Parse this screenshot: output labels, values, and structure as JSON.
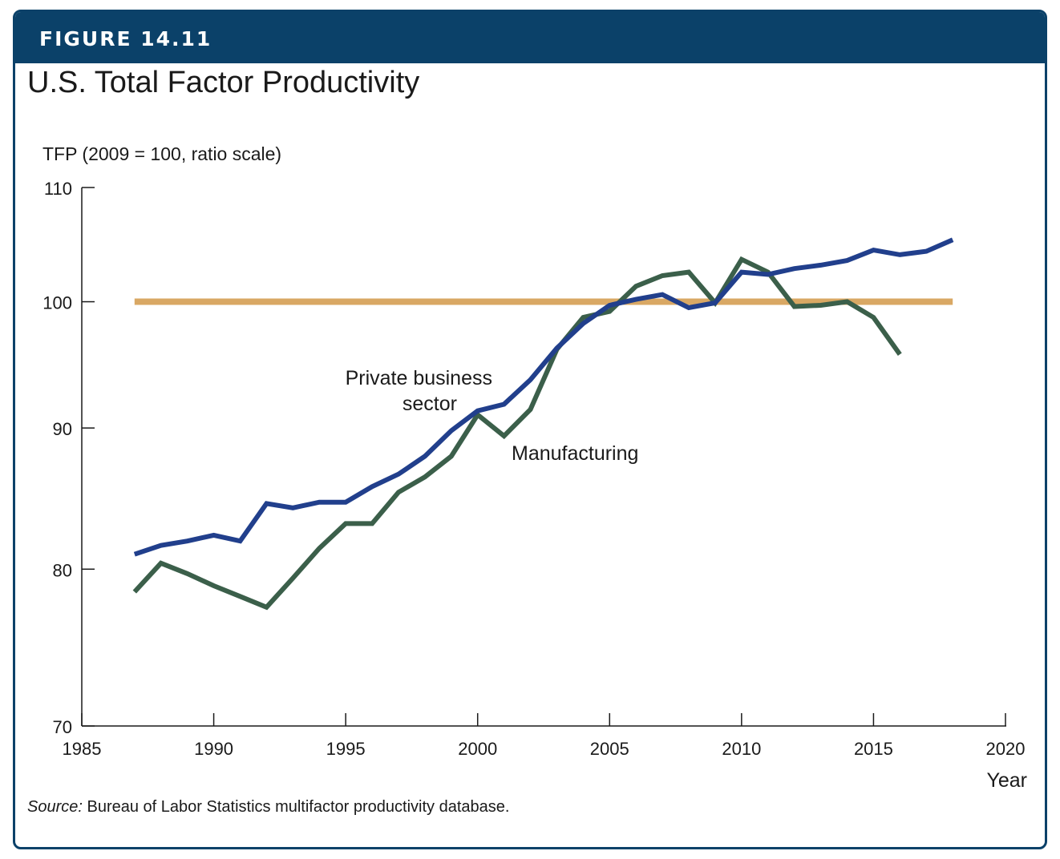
{
  "figure": {
    "label": "FIGURE 14.11",
    "title": "U.S. Total Factor Productivity",
    "source_prefix": "Source:",
    "source_text": " Bureau of Labor Statistics multifactor productivity database."
  },
  "colors": {
    "header": "#0b4169",
    "private": "#213f8c",
    "manufacturing": "#3b5f4a",
    "reference": "#d9a864"
  },
  "chart_data": {
    "type": "line",
    "title": "U.S. Total Factor Productivity",
    "ylabel": "TFP (2009 = 100, ratio scale)",
    "xlabel": "Year",
    "y_scale": "log",
    "xlim": [
      1985,
      2020
    ],
    "ylim": [
      70,
      110
    ],
    "x_ticks": [
      1985,
      1990,
      1995,
      2000,
      2005,
      2010,
      2015,
      2020
    ],
    "y_ticks": [
      70,
      80,
      90,
      100,
      110
    ],
    "grid": false,
    "series": [
      {
        "name": "Private business sector",
        "color_key": "private",
        "x": [
          1987,
          1988,
          1989,
          1990,
          1991,
          1992,
          1993,
          1994,
          1995,
          1996,
          1997,
          1998,
          1999,
          2000,
          2001,
          2002,
          2003,
          2004,
          2005,
          2006,
          2007,
          2008,
          2009,
          2010,
          2011,
          2012,
          2013,
          2014,
          2015,
          2016,
          2017,
          2018
        ],
        "values": [
          81.0,
          81.6,
          81.9,
          82.3,
          81.9,
          84.5,
          84.2,
          84.6,
          84.6,
          85.7,
          86.6,
          87.9,
          89.8,
          91.3,
          91.8,
          93.7,
          96.2,
          98.2,
          99.7,
          100.2,
          100.6,
          99.5,
          99.9,
          102.5,
          102.3,
          102.8,
          103.1,
          103.5,
          104.4,
          104.0,
          104.3,
          105.3
        ]
      },
      {
        "name": "Manufacturing",
        "color_key": "manufacturing",
        "x": [
          1987,
          1988,
          1989,
          1990,
          1991,
          1992,
          1993,
          1994,
          1995,
          1996,
          1997,
          1998,
          1999,
          2000,
          2001,
          2002,
          2003,
          2004,
          2005,
          2006,
          2007,
          2008,
          2009,
          2010,
          2011,
          2012,
          2013,
          2014,
          2015,
          2016
        ],
        "values": [
          78.5,
          80.4,
          79.7,
          78.9,
          78.2,
          77.5,
          79.4,
          81.4,
          83.1,
          83.1,
          85.3,
          86.4,
          87.9,
          91.0,
          89.4,
          91.4,
          96.1,
          98.7,
          99.2,
          101.3,
          102.2,
          102.5,
          99.9,
          103.6,
          102.5,
          99.6,
          99.7,
          100.0,
          98.7,
          95.7
        ]
      },
      {
        "name": "",
        "color_key": "reference",
        "x": [
          1987,
          2018
        ],
        "values": [
          100,
          100
        ]
      }
    ],
    "annotations": [
      {
        "text": "Private business",
        "anchor": "private_line_1"
      },
      {
        "text": "sector",
        "anchor": "private_line_2"
      },
      {
        "text": "Manufacturing",
        "anchor": "manufacturing"
      }
    ]
  }
}
